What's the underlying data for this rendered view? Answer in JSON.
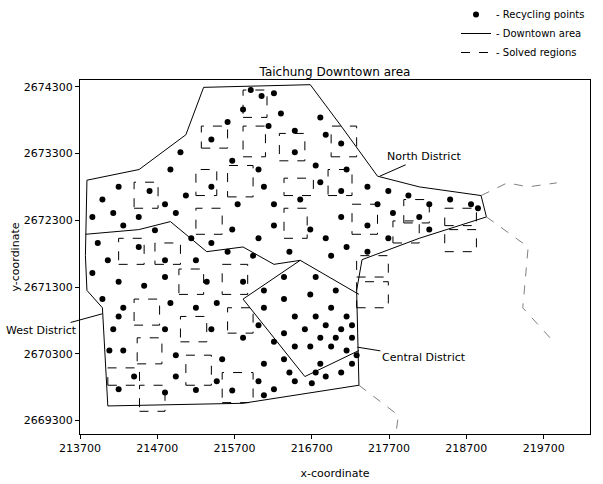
{
  "chart_data": {
    "type": "scatter",
    "title": "Taichung Downtown area",
    "x_label": "x-coordinate",
    "y_label": "y-coordinate",
    "xlim": [
      213700,
      220300
    ],
    "ylim": [
      2669100,
      2674400
    ],
    "xticks": [
      213700,
      214700,
      215700,
      216700,
      217700,
      218700,
      219700
    ],
    "yticks": [
      2669300,
      2670300,
      2671300,
      2672300,
      2673300,
      2674300
    ],
    "grid": false,
    "legend": "top right",
    "series": [
      {
        "name": "- Recycling points",
        "type": "scatter",
        "marker": "circle",
        "color": "#000000",
        "x": [
          215910,
          216050,
          216210,
          215810,
          216300,
          215610,
          216140,
          215400,
          216480,
          216810,
          216880,
          217080,
          216480,
          215670,
          216010,
          215000,
          214870,
          216750,
          217150,
          214600,
          214800,
          214200,
          213990,
          213860,
          214130,
          214460,
          214670,
          213930,
          214260,
          215070,
          215400,
          215740,
          216080,
          216210,
          216550,
          216810,
          217080,
          217420,
          217690,
          217950,
          218220,
          218490,
          218760,
          218850,
          217550,
          217750,
          218090,
          218220,
          217690,
          217420,
          217080,
          216880,
          216680,
          216210,
          216010,
          215670,
          215400,
          215140,
          214940,
          217150,
          217420,
          216950,
          216410,
          215940,
          215610,
          215200,
          214800,
          214460,
          214060,
          213860,
          214200,
          214530,
          214800,
          215340,
          215810,
          216080,
          216340,
          216750,
          217010,
          213990,
          214260,
          214870,
          215200,
          215470,
          216080,
          216340,
          216680,
          216950,
          217150,
          216480,
          216750,
          216880,
          217080,
          217220,
          216610,
          216340,
          216810,
          217010,
          217220,
          216680,
          216950,
          217150,
          216480,
          216210,
          216010,
          214130,
          214200,
          214800,
          215400,
          215810,
          214080,
          214260,
          214940,
          215540,
          216080,
          216340,
          216810,
          217220,
          214400,
          214940,
          215470,
          216010,
          216480,
          216880,
          216210,
          216700,
          216080,
          215670,
          215200,
          214800,
          214200,
          216750,
          216410,
          217080,
          217280
        ],
        "y": [
          2674250,
          2674160,
          2674200,
          2673960,
          2673900,
          2673770,
          2673710,
          2673510,
          2673640,
          2673840,
          2673580,
          2673450,
          2673320,
          2673190,
          2673060,
          2673320,
          2673060,
          2673120,
          2673060,
          2672740,
          2672540,
          2672800,
          2672610,
          2672350,
          2672410,
          2672350,
          2672150,
          2671960,
          2672220,
          2672670,
          2672800,
          2672540,
          2672800,
          2672540,
          2672610,
          2672870,
          2672740,
          2672800,
          2672740,
          2672670,
          2672540,
          2672610,
          2672540,
          2672480,
          2672540,
          2672410,
          2672350,
          2672160,
          2672030,
          2672220,
          2672350,
          2672030,
          2672160,
          2672220,
          2672030,
          2672160,
          2671960,
          2672030,
          2672410,
          2671900,
          2671830,
          2671770,
          2671830,
          2671770,
          2671830,
          2671700,
          2671700,
          2671900,
          2671700,
          2671510,
          2671380,
          2671320,
          2671450,
          2671380,
          2671380,
          2671250,
          2671450,
          2671450,
          2671250,
          2671120,
          2670990,
          2671060,
          2670990,
          2671060,
          2670990,
          2671120,
          2671190,
          2670990,
          2670860,
          2670860,
          2670860,
          2670730,
          2670670,
          2670730,
          2670670,
          2670610,
          2670540,
          2670540,
          2670540,
          2670410,
          2670410,
          2670350,
          2670410,
          2670480,
          2670730,
          2670670,
          2670860,
          2670670,
          2670670,
          2670540,
          2670350,
          2670350,
          2670280,
          2670220,
          2670150,
          2670220,
          2670150,
          2670150,
          2669960,
          2669960,
          2669890,
          2669890,
          2669890,
          2669960,
          2669770,
          2669860,
          2669680,
          2669750,
          2669760,
          2669720,
          2669770,
          2670020,
          2670020,
          2670020,
          2670280
        ]
      },
      {
        "name": "- Downtown area",
        "type": "line",
        "line_style": "solid",
        "color": "#000000",
        "x": [
          213790,
          214465,
          215070,
          215300,
          216680,
          217080,
          217550,
          218090,
          218890,
          218960,
          218090,
          217350,
          217280,
          217310,
          215810,
          214060,
          213990,
          213790,
          213770,
          213790
        ],
        "y": [
          2672900,
          2673060,
          2673580,
          2674290,
          2674330,
          2673710,
          2672960,
          2672800,
          2672670,
          2672350,
          2672030,
          2671710,
          2671250,
          2669830,
          2669560,
          2669520,
          2670990,
          2671250,
          2671770,
          2672900
        ]
      },
      {
        "name": "- Solved regions",
        "type": "rectangles",
        "line_style": "dashed",
        "color": "#000000",
        "rects": [
          [
            215810,
            2673840,
            216120,
            2674250
          ],
          [
            215270,
            2673380,
            215610,
            2673710
          ],
          [
            215810,
            2673250,
            216100,
            2673710
          ],
          [
            216280,
            2673190,
            216610,
            2673600
          ],
          [
            216950,
            2673250,
            217280,
            2673710
          ],
          [
            214400,
            2672480,
            214710,
            2672870
          ],
          [
            215200,
            2672670,
            215470,
            2673060
          ],
          [
            215610,
            2672650,
            215940,
            2673120
          ],
          [
            216340,
            2672670,
            216720,
            2672930
          ],
          [
            216910,
            2672670,
            217220,
            2673060
          ],
          [
            217890,
            2672260,
            218220,
            2672610
          ],
          [
            218420,
            2672220,
            218830,
            2672480
          ],
          [
            218420,
            2671830,
            218830,
            2672160
          ],
          [
            217750,
            2671960,
            218090,
            2672290
          ],
          [
            217220,
            2672090,
            217550,
            2672540
          ],
          [
            216340,
            2672030,
            216640,
            2672480
          ],
          [
            215200,
            2672090,
            215540,
            2672480
          ],
          [
            214670,
            2671640,
            215000,
            2671960
          ],
          [
            214200,
            2671640,
            214530,
            2672030
          ],
          [
            214980,
            2671190,
            215300,
            2671570
          ],
          [
            215540,
            2671190,
            215870,
            2671640
          ],
          [
            217280,
            2671450,
            217690,
            2671770
          ],
          [
            217280,
            2670990,
            217690,
            2671380
          ],
          [
            214400,
            2670730,
            214730,
            2671120
          ],
          [
            215610,
            2670610,
            215940,
            2670990
          ],
          [
            215000,
            2670480,
            215340,
            2670860
          ],
          [
            214440,
            2670150,
            214760,
            2670540
          ],
          [
            215070,
            2669830,
            215400,
            2670280
          ],
          [
            214060,
            2669830,
            214470,
            2670090
          ],
          [
            215540,
            2669570,
            215940,
            2670020
          ],
          [
            214470,
            2669440,
            214800,
            2669830
          ]
        ]
      },
      {
        "type": "line",
        "line_style": "solid",
        "color": "#000000",
        "x": [
          213770,
          214460,
          214870,
          215340,
          215810,
          216210,
          216550,
          217310,
          null,
          216550,
          215810,
          216610,
          217310
        ],
        "y": [
          2672090,
          2672160,
          2672280,
          2671830,
          2671900,
          2671640,
          2671700,
          2671190,
          null,
          2671700,
          2671120,
          2669960,
          2670350
        ]
      },
      {
        "type": "line",
        "line_style": "dashed",
        "color": "#808080",
        "x": [
          218890,
          219230,
          219500,
          219870,
          null,
          218960,
          219500,
          219430,
          219830,
          null,
          217310,
          217820,
          217790
        ],
        "y": [
          2672670,
          2672860,
          2672800,
          2672860,
          null,
          2672350,
          2671900,
          2670990,
          2670480,
          null,
          2669830,
          2669380,
          2669120
        ]
      }
    ],
    "annotations": [
      {
        "text": "North District",
        "x": 217580,
        "y": 2672960,
        "text_x": 218150,
        "text_y": 2673250
      },
      {
        "text": "West District",
        "x": 213990,
        "y": 2670900,
        "text_x": 213200,
        "text_y": 2670650
      },
      {
        "text": "Central District",
        "x": 217290,
        "y": 2670400,
        "text_x": 218150,
        "text_y": 2670240
      }
    ]
  }
}
